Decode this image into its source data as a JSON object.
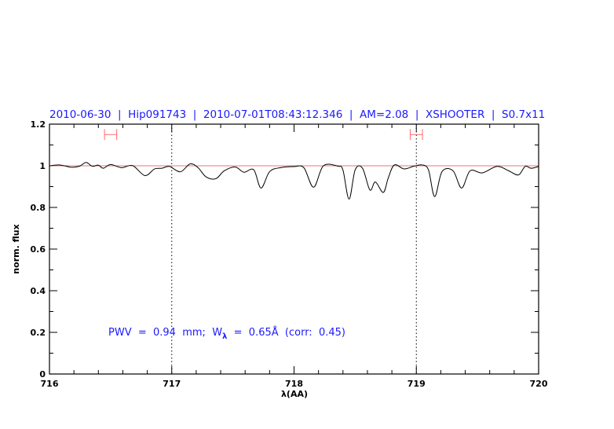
{
  "chart_data": {
    "type": "line",
    "title": "2010-06-30  |  Hip091743  |  2010-07-01T08:43:12.346  |  AM=2.08  |  XSHOOTER  |  S0.7x11",
    "xlabel": "λ(AA)",
    "ylabel": "norm. flux",
    "xlim": [
      716,
      720
    ],
    "ylim": [
      0,
      1.2
    ],
    "x_ticks": [
      "716",
      "717",
      "718",
      "719",
      "720"
    ],
    "y_ticks": [
      "0",
      "0.2",
      "0.4",
      "0.6",
      "0.8",
      "1",
      "1.2"
    ],
    "grid": false,
    "vertical_dotted_lines": [
      717,
      719
    ],
    "reference_line_y": 1.0,
    "annotation": {
      "prefix": "PWV  =  0.94  mm;  W",
      "sub": "λ",
      "suffix": "  =  0.65Å  (corr:  0.45)"
    },
    "range_markers": [
      {
        "from": 716.45,
        "to": 716.55,
        "y": 1.15
      },
      {
        "from": 718.95,
        "to": 719.05,
        "y": 1.15
      }
    ],
    "colors": {
      "spectrum": "#000000",
      "reference": "#e07a7a",
      "markers": "#ff6a6a",
      "text": "#1a1aff"
    },
    "series": [
      {
        "x": [
          716.0,
          716.085,
          716.18,
          716.245,
          716.3,
          716.35,
          716.4,
          716.44,
          716.5,
          716.59,
          716.68,
          716.78,
          716.86,
          716.92,
          716.98,
          717.07,
          717.15,
          717.215,
          717.28,
          717.36,
          717.43,
          717.52,
          717.59,
          717.67,
          717.73,
          717.8,
          717.89,
          718.0,
          718.08,
          718.16,
          718.24,
          718.36,
          718.4,
          718.45,
          718.5,
          718.56,
          718.62,
          718.665,
          718.73,
          718.77,
          718.82,
          718.9,
          718.98,
          719.05,
          719.1,
          719.15,
          719.21,
          719.3,
          719.37,
          719.44,
          719.54,
          719.66,
          719.755,
          719.835,
          719.89,
          719.94,
          720.0
        ],
        "y": [
          1.0,
          1.004,
          0.993,
          0.998,
          1.016,
          0.998,
          1.003,
          0.988,
          1.006,
          0.991,
          1.001,
          0.953,
          0.985,
          0.988,
          0.997,
          0.971,
          1.009,
          0.991,
          0.947,
          0.938,
          0.976,
          0.994,
          0.969,
          0.981,
          0.893,
          0.972,
          0.991,
          0.996,
          0.991,
          0.897,
          1.0,
          0.998,
          0.979,
          0.84,
          0.981,
          0.988,
          0.884,
          0.922,
          0.872,
          0.941,
          1.004,
          0.985,
          0.998,
          1.004,
          0.979,
          0.852,
          0.972,
          0.976,
          0.893,
          0.976,
          0.966,
          0.997,
          0.976,
          0.956,
          0.997,
          0.988,
          0.997
        ]
      }
    ]
  }
}
